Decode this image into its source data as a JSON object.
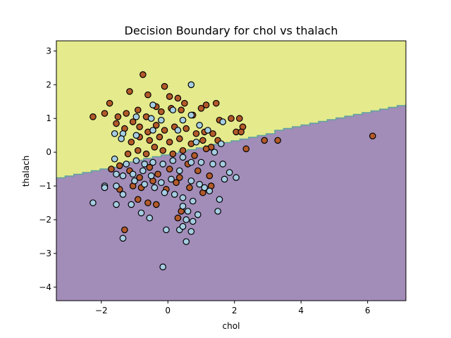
{
  "chart_data": {
    "type": "scatter",
    "title": "Decision Boundary for chol vs thalach",
    "xlabel": "chol",
    "ylabel": "thalach",
    "xlim": [
      -3.35,
      7.15
    ],
    "ylim": [
      -4.4,
      3.3
    ],
    "x_ticks": [
      -2,
      0,
      2,
      4,
      6
    ],
    "y_ticks": [
      -4,
      -3,
      -2,
      -1,
      0,
      1,
      2,
      3
    ],
    "x_tick_labels": [
      "−2",
      "0",
      "2",
      "4",
      "6"
    ],
    "y_tick_labels": [
      "−4",
      "−3",
      "−2",
      "−1",
      "0",
      "1",
      "2",
      "3"
    ],
    "grid": false,
    "legend": "none",
    "regions": {
      "upper_color": "#e5ea8c",
      "lower_color": "#a28cb8",
      "boundary_color": "#5fa2a0",
      "boundary": {
        "x": [
          -3.35,
          7.15
        ],
        "y": [
          -0.75,
          1.45
        ]
      }
    },
    "series": [
      {
        "color": "#b35a2a",
        "edge_color": "#000000",
        "points": [
          [
            -0.75,
            2.3
          ],
          [
            -0.1,
            1.95
          ],
          [
            -1.75,
            1.45
          ],
          [
            -1.15,
            1.8
          ],
          [
            -0.6,
            1.7
          ],
          [
            -0.35,
            1.35
          ],
          [
            0.05,
            1.65
          ],
          [
            0.3,
            1.6
          ],
          [
            0.5,
            1.45
          ],
          [
            1.45,
            1.45
          ],
          [
            -1.9,
            1.15
          ],
          [
            -2.25,
            1.05
          ],
          [
            -1.5,
            1.05
          ],
          [
            -1.25,
            1.15
          ],
          [
            -0.9,
            1.25
          ],
          [
            -0.65,
            1.05
          ],
          [
            -0.2,
            1.2
          ],
          [
            0.1,
            1.3
          ],
          [
            0.4,
            1.25
          ],
          [
            0.75,
            1.1
          ],
          [
            1.0,
            1.3
          ],
          [
            1.15,
            1.4
          ],
          [
            -1.55,
            0.85
          ],
          [
            -1.3,
            0.7
          ],
          [
            -1.05,
            0.9
          ],
          [
            -0.85,
            0.75
          ],
          [
            -0.6,
            0.6
          ],
          [
            -0.35,
            0.8
          ],
          [
            -0.1,
            0.65
          ],
          [
            0.2,
            0.75
          ],
          [
            0.55,
            0.7
          ],
          [
            0.85,
            0.55
          ],
          [
            1.1,
            0.6
          ],
          [
            1.35,
            0.55
          ],
          [
            1.55,
            0.95
          ],
          [
            1.9,
            1.0
          ],
          [
            2.15,
            1.0
          ],
          [
            2.25,
            0.75
          ],
          [
            2.05,
            0.6
          ],
          [
            2.2,
            0.6
          ],
          [
            -1.1,
            0.3
          ],
          [
            -0.85,
            0.45
          ],
          [
            -0.55,
            0.35
          ],
          [
            -0.25,
            0.45
          ],
          [
            0.05,
            0.3
          ],
          [
            0.35,
            0.4
          ],
          [
            0.7,
            0.25
          ],
          [
            1.05,
            0.35
          ],
          [
            1.3,
            0.15
          ],
          [
            1.5,
            0.35
          ],
          [
            2.35,
            0.1
          ],
          [
            2.9,
            0.35
          ],
          [
            3.3,
            0.35
          ],
          [
            6.15,
            0.48
          ],
          [
            -0.9,
            0.05
          ],
          [
            -0.65,
            -0.05
          ],
          [
            -0.4,
            0.15
          ],
          [
            -0.15,
            0.05
          ],
          [
            0.15,
            -0.05
          ],
          [
            0.45,
            0.05
          ],
          [
            0.8,
            -0.1
          ],
          [
            1.15,
            0.1
          ],
          [
            -1.2,
            -0.05
          ],
          [
            -1.7,
            -0.5
          ],
          [
            -1.45,
            -0.4
          ],
          [
            -1.15,
            -0.55
          ],
          [
            -0.85,
            -0.75
          ],
          [
            -0.55,
            -0.45
          ],
          [
            -0.3,
            -0.65
          ],
          [
            0.05,
            -0.5
          ],
          [
            0.35,
            -0.75
          ],
          [
            0.6,
            -0.35
          ],
          [
            0.9,
            -0.55
          ],
          [
            1.25,
            -0.7
          ],
          [
            1.3,
            -1.0
          ],
          [
            1.05,
            -1.2
          ],
          [
            0.65,
            -1.05
          ],
          [
            0.25,
            -0.9
          ],
          [
            -0.05,
            -1.1
          ],
          [
            -0.45,
            -0.85
          ],
          [
            -0.8,
            -1.05
          ],
          [
            -1.05,
            -1.0
          ],
          [
            -0.9,
            -1.4
          ],
          [
            -0.6,
            -1.5
          ],
          [
            -0.35,
            -1.55
          ],
          [
            0.4,
            -1.75
          ],
          [
            0.3,
            -1.95
          ],
          [
            -1.3,
            -2.3
          ],
          [
            -1.45,
            -1.1
          ]
        ]
      },
      {
        "color": "#a6cee3",
        "edge_color": "#000000",
        "points": [
          [
            0.7,
            2.0
          ],
          [
            -0.45,
            1.4
          ],
          [
            0.15,
            1.25
          ],
          [
            0.45,
            0.95
          ],
          [
            0.7,
            1.1
          ],
          [
            0.95,
            0.8
          ],
          [
            1.2,
            0.65
          ],
          [
            -1.35,
            0.55
          ],
          [
            -0.95,
            1.05
          ],
          [
            -0.5,
            1.0
          ],
          [
            -0.2,
            0.95
          ],
          [
            -1.4,
            0.4
          ],
          [
            -0.95,
            0.5
          ],
          [
            -0.45,
            0.65
          ],
          [
            0.3,
            0.65
          ],
          [
            0.85,
            0.3
          ],
          [
            1.65,
            0.9
          ],
          [
            1.6,
            0.25
          ],
          [
            1.4,
            0.0
          ],
          [
            1.65,
            -0.35
          ],
          [
            1.85,
            -0.6
          ],
          [
            1.7,
            -0.8
          ],
          [
            2.05,
            -0.75
          ],
          [
            -1.6,
            -0.2
          ],
          [
            -1.25,
            -0.35
          ],
          [
            -0.95,
            -0.25
          ],
          [
            -0.7,
            -0.35
          ],
          [
            -0.45,
            -0.3
          ],
          [
            -0.15,
            -0.35
          ],
          [
            0.15,
            -0.25
          ],
          [
            0.45,
            -0.15
          ],
          [
            0.7,
            -0.3
          ],
          [
            1.0,
            -0.3
          ],
          [
            1.35,
            -0.35
          ],
          [
            -1.55,
            -0.65
          ],
          [
            -1.35,
            -0.7
          ],
          [
            -1.05,
            -0.65
          ],
          [
            -0.75,
            -0.55
          ],
          [
            -0.5,
            -0.7
          ],
          [
            -0.2,
            -0.9
          ],
          [
            0.1,
            -0.8
          ],
          [
            0.35,
            -0.55
          ],
          [
            0.7,
            -0.85
          ],
          [
            0.95,
            -0.95
          ],
          [
            -1.9,
            -1.0
          ],
          [
            -1.55,
            -1.0
          ],
          [
            -1.35,
            -1.25
          ],
          [
            -1.0,
            -0.85
          ],
          [
            -0.7,
            -0.95
          ],
          [
            -0.4,
            -1.05
          ],
          [
            -0.1,
            -1.2
          ],
          [
            0.2,
            -1.25
          ],
          [
            0.45,
            -1.35
          ],
          [
            0.75,
            -1.45
          ],
          [
            1.1,
            -1.05
          ],
          [
            1.25,
            -1.15
          ],
          [
            -2.25,
            -1.5
          ],
          [
            -1.55,
            -1.55
          ],
          [
            -1.1,
            -1.55
          ],
          [
            -0.8,
            -1.8
          ],
          [
            -0.55,
            -1.95
          ],
          [
            0.45,
            -1.6
          ],
          [
            0.6,
            -1.75
          ],
          [
            0.9,
            -1.85
          ],
          [
            1.5,
            -1.75
          ],
          [
            1.55,
            -1.4
          ],
          [
            0.55,
            -2.0
          ],
          [
            0.75,
            -2.05
          ],
          [
            -0.05,
            -2.3
          ],
          [
            0.35,
            -2.3
          ],
          [
            0.7,
            -2.35
          ],
          [
            0.45,
            -2.2
          ],
          [
            -1.35,
            -2.55
          ],
          [
            0.55,
            -2.65
          ],
          [
            -0.15,
            -3.4
          ],
          [
            -1.9,
            -1.05
          ],
          [
            -1.6,
            0.55
          ]
        ]
      }
    ]
  }
}
